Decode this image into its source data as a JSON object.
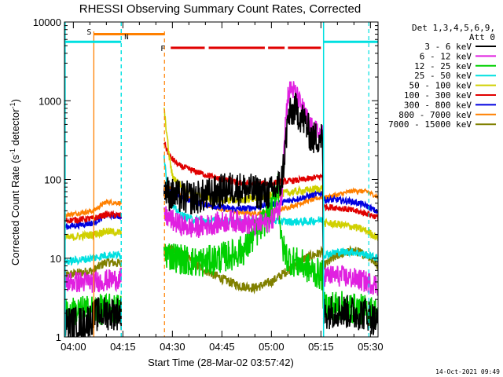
{
  "chart_data": {
    "type": "line",
    "title": "RHESSI Observing Summary Count Rates, Corrected",
    "xlabel": "Start Time (28-Mar-02 03:57:42)",
    "ylabel": "Corrected Count Rate (s⁻¹ detector⁻¹)",
    "ylabel_main": "Corrected Count Rate (s",
    "ylabel_sup1": "-1",
    "ylabel_mid": " detector",
    "ylabel_sup2": "-1",
    "ylabel_end": ")",
    "x_ticks": [
      "04:00",
      "04:15",
      "04:30",
      "04:45",
      "05:00",
      "05:15",
      "05:30"
    ],
    "x_tick_minutes": [
      0,
      15,
      30,
      45,
      60,
      75,
      90
    ],
    "xlim_minutes": [
      -2.7,
      92.3
    ],
    "y_ticks": [
      "1",
      "10",
      "100",
      "1000",
      "10000"
    ],
    "y_tick_values": [
      1,
      10,
      100,
      1000,
      10000
    ],
    "ylim": [
      1,
      10000
    ],
    "yscale": "log",
    "legend": {
      "header1": "Det 1,3,4,5,6,9,",
      "header2": "Att 0",
      "placement": "top-right-outside"
    },
    "series": [
      {
        "name": "3 - 6 keV",
        "color": "#000000"
      },
      {
        "name": "6 - 12 keV",
        "color": "#e020e0"
      },
      {
        "name": "12 - 25 keV",
        "color": "#00d000"
      },
      {
        "name": "25 - 50 keV",
        "color": "#00e0e0"
      },
      {
        "name": "50 - 100 keV",
        "color": "#d0d000"
      },
      {
        "name": "100 - 300 keV",
        "color": "#e00000"
      },
      {
        "name": "300 - 800 keV",
        "color": "#0000e0"
      },
      {
        "name": "800 - 7000 keV",
        "color": "#ff8000"
      },
      {
        "name": "7000 - 15000 keV",
        "color": "#808000"
      }
    ],
    "segments": [
      [
        -2.7,
        14.5
      ],
      [
        27.5,
        75.8
      ],
      [
        75.8,
        92.3
      ]
    ],
    "profiles": [
      [
        [
          -2.7,
          1.5
        ],
        [
          3,
          1.5
        ],
        [
          8,
          2.0
        ],
        [
          14.5,
          2.0
        ],
        [
          27.5,
          80
        ],
        [
          29,
          65
        ],
        [
          32,
          60
        ],
        [
          36,
          58
        ],
        [
          40,
          62
        ],
        [
          44,
          70
        ],
        [
          48,
          78
        ],
        [
          52,
          75
        ],
        [
          55,
          70
        ],
        [
          58,
          66
        ],
        [
          60,
          68
        ],
        [
          63,
          90
        ],
        [
          64,
          200
        ],
        [
          65,
          600
        ],
        [
          67,
          800
        ],
        [
          70,
          550
        ],
        [
          72,
          350
        ],
        [
          73,
          330
        ],
        [
          75.5,
          360
        ],
        [
          75.8,
          2.0
        ],
        [
          80,
          2.2
        ],
        [
          85,
          2.0
        ],
        [
          89,
          2.0
        ],
        [
          92.3,
          1.5
        ]
      ],
      [
        [
          -2.7,
          5
        ],
        [
          6,
          5
        ],
        [
          14.5,
          5.5
        ],
        [
          27.5,
          35
        ],
        [
          29,
          32
        ],
        [
          32,
          27
        ],
        [
          36,
          24
        ],
        [
          40,
          26
        ],
        [
          44,
          28
        ],
        [
          48,
          30
        ],
        [
          52,
          28
        ],
        [
          55,
          26
        ],
        [
          58,
          28
        ],
        [
          60,
          30
        ],
        [
          63,
          50
        ],
        [
          64,
          400
        ],
        [
          65,
          1200
        ],
        [
          66,
          1450
        ],
        [
          67,
          1300
        ],
        [
          70,
          700
        ],
        [
          72,
          450
        ],
        [
          75.5,
          360
        ],
        [
          75.8,
          6
        ],
        [
          80,
          6
        ],
        [
          85,
          5.5
        ],
        [
          89,
          5
        ],
        [
          92.3,
          4.5
        ]
      ],
      [
        [
          -2.7,
          2
        ],
        [
          6,
          2.2
        ],
        [
          14.5,
          2.3
        ],
        [
          27.5,
          12
        ],
        [
          29,
          11
        ],
        [
          32,
          10
        ],
        [
          36,
          9
        ],
        [
          40,
          9
        ],
        [
          44,
          10
        ],
        [
          48,
          11
        ],
        [
          52,
          13
        ],
        [
          55,
          20
        ],
        [
          58,
          30
        ],
        [
          60,
          40
        ],
        [
          62,
          100
        ],
        [
          63,
          15
        ],
        [
          65,
          10
        ],
        [
          67,
          9
        ],
        [
          70,
          8
        ],
        [
          72,
          7
        ],
        [
          75.5,
          6
        ],
        [
          75.8,
          2.5
        ],
        [
          80,
          2.5
        ],
        [
          85,
          2.3
        ],
        [
          89,
          2.2
        ],
        [
          92.3,
          2
        ]
      ],
      [
        [
          -2.7,
          9
        ],
        [
          6,
          10
        ],
        [
          10,
          11
        ],
        [
          14.5,
          11
        ],
        [
          27.5,
          200
        ],
        [
          28.5,
          80
        ],
        [
          30,
          45
        ],
        [
          33,
          35
        ],
        [
          36,
          31
        ],
        [
          40,
          30
        ],
        [
          45,
          29
        ],
        [
          50,
          29
        ],
        [
          55,
          30
        ],
        [
          60,
          30
        ],
        [
          65,
          29
        ],
        [
          70,
          29
        ],
        [
          75.5,
          31
        ],
        [
          75.8,
          11
        ],
        [
          80,
          12
        ],
        [
          85,
          12
        ],
        [
          89,
          11
        ],
        [
          92.3,
          10
        ]
      ],
      [
        [
          -2.7,
          18
        ],
        [
          6,
          20
        ],
        [
          10,
          22
        ],
        [
          14.5,
          21
        ],
        [
          27.5,
          750
        ],
        [
          28,
          500
        ],
        [
          29,
          200
        ],
        [
          30,
          110
        ],
        [
          33,
          80
        ],
        [
          37,
          65
        ],
        [
          41,
          58
        ],
        [
          45,
          55
        ],
        [
          50,
          55
        ],
        [
          55,
          58
        ],
        [
          60,
          63
        ],
        [
          65,
          68
        ],
        [
          70,
          72
        ],
        [
          75.5,
          78
        ],
        [
          75.8,
          28
        ],
        [
          80,
          27
        ],
        [
          85,
          25
        ],
        [
          89,
          22
        ],
        [
          92.3,
          18
        ]
      ],
      [
        [
          -2.7,
          30
        ],
        [
          6,
          32
        ],
        [
          10,
          36
        ],
        [
          14.5,
          35
        ],
        [
          27.5,
          300
        ],
        [
          29,
          200
        ],
        [
          32,
          150
        ],
        [
          36,
          130
        ],
        [
          40,
          115
        ],
        [
          45,
          100
        ],
        [
          50,
          90
        ],
        [
          55,
          88
        ],
        [
          60,
          90
        ],
        [
          65,
          95
        ],
        [
          70,
          100
        ],
        [
          75.5,
          110
        ],
        [
          75.8,
          45
        ],
        [
          80,
          44
        ],
        [
          85,
          40
        ],
        [
          89,
          37
        ],
        [
          92.3,
          33
        ]
      ],
      [
        [
          -2.7,
          25
        ],
        [
          6,
          28
        ],
        [
          10,
          35
        ],
        [
          14.5,
          34
        ],
        [
          27.5,
          72
        ],
        [
          29,
          70
        ],
        [
          32,
          60
        ],
        [
          36,
          52
        ],
        [
          40,
          48
        ],
        [
          45,
          44
        ],
        [
          50,
          42
        ],
        [
          55,
          44
        ],
        [
          60,
          48
        ],
        [
          65,
          53
        ],
        [
          70,
          60
        ],
        [
          75.5,
          68
        ],
        [
          75.8,
          55
        ],
        [
          80,
          55
        ],
        [
          85,
          52
        ],
        [
          89,
          46
        ],
        [
          92.3,
          38
        ]
      ],
      [
        [
          -2.7,
          35
        ],
        [
          6,
          40
        ],
        [
          10,
          52
        ],
        [
          14.5,
          50
        ],
        [
          27.5,
          72
        ],
        [
          29,
          78
        ],
        [
          32,
          65
        ],
        [
          36,
          55
        ],
        [
          40,
          48
        ],
        [
          45,
          42
        ],
        [
          50,
          38
        ],
        [
          55,
          37
        ],
        [
          60,
          39
        ],
        [
          65,
          44
        ],
        [
          70,
          52
        ],
        [
          75.5,
          60
        ],
        [
          75.8,
          58
        ],
        [
          80,
          64
        ],
        [
          85,
          72
        ],
        [
          89,
          70
        ],
        [
          92.3,
          60
        ]
      ],
      [
        [
          -2.7,
          6
        ],
        [
          6,
          7
        ],
        [
          10,
          9
        ],
        [
          14.5,
          8.5
        ],
        [
          27.5,
          12
        ],
        [
          29,
          13
        ],
        [
          32,
          12
        ],
        [
          36,
          9
        ],
        [
          40,
          7
        ],
        [
          45,
          5.5
        ],
        [
          50,
          4.5
        ],
        [
          55,
          4.2
        ],
        [
          60,
          5
        ],
        [
          65,
          7
        ],
        [
          70,
          10
        ],
        [
          75.5,
          12
        ],
        [
          75.8,
          8
        ],
        [
          80,
          11
        ],
        [
          85,
          12.5
        ],
        [
          89,
          11
        ],
        [
          92.3,
          8
        ]
      ]
    ],
    "annotations": {
      "S": {
        "label": "S",
        "color": "#ff8000",
        "x_minutes": 6.2,
        "bar": [
          6.2,
          27.6
        ],
        "level": 7000,
        "dashed_end": 27.6
      },
      "N": {
        "label": "N",
        "color": "#00e0e0",
        "x_minutes": 14.5,
        "bar": [
          -2.7,
          14.5
        ],
        "level": 5600
      },
      "N2": {
        "x_minutes": 75.8,
        "bar": [
          75.8,
          92.3
        ],
        "level": 5600
      },
      "F": {
        "label": "F",
        "color": "#e00000",
        "bar": [
          29.5,
          75.0
        ],
        "level": 4700,
        "gaps": [
          [
            39.8,
            41.0
          ],
          [
            58.0,
            59.0
          ],
          [
            64.0,
            65.0
          ]
        ]
      },
      "dashed_cyan": [
        14.5,
        89.5
      ]
    }
  },
  "footer": {
    "timestamp": "14-Oct-2021 09:49"
  }
}
